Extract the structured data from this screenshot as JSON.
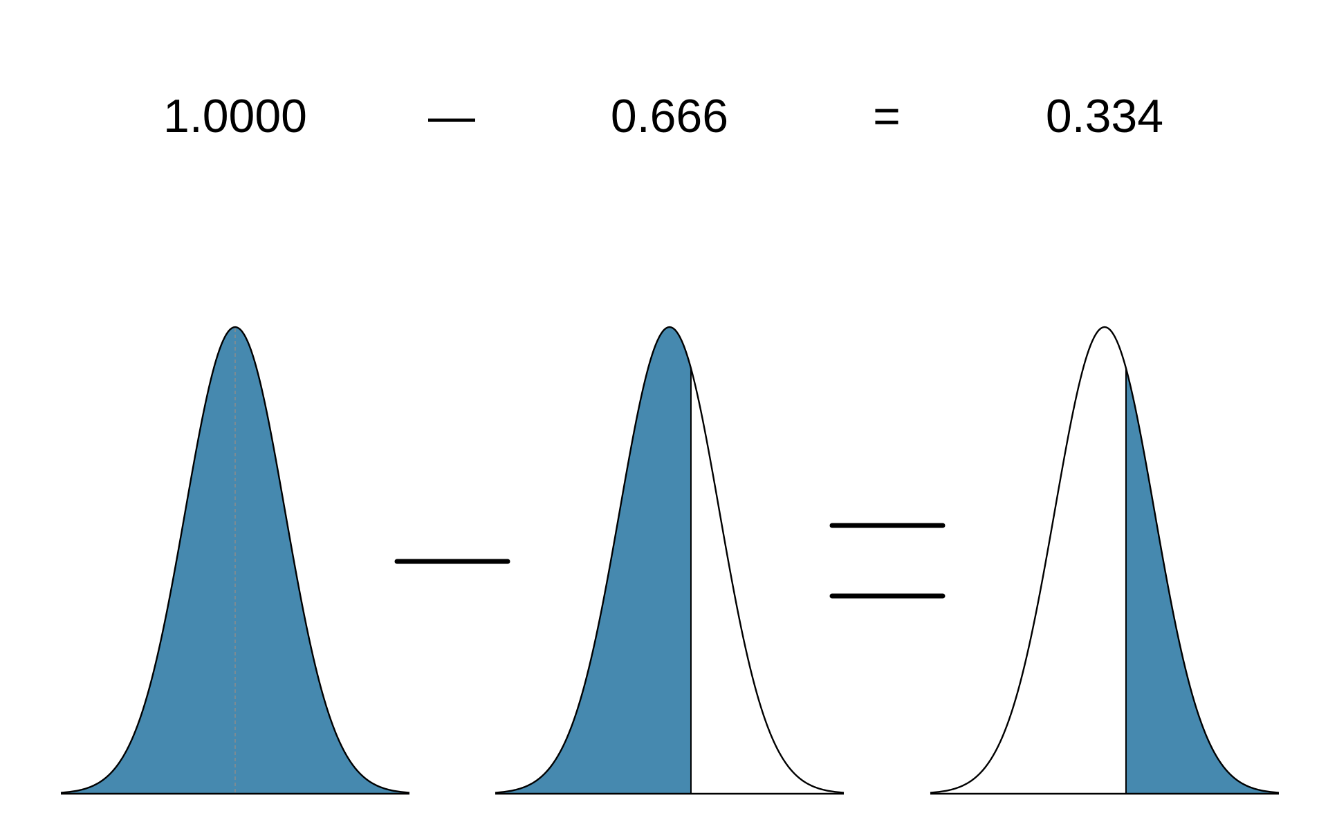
{
  "equation": {
    "term1": "1.0000",
    "minus_symbol": "—",
    "term2": "0.666",
    "equals_symbol": "=",
    "result": "0.334"
  },
  "curves": [
    {
      "name": "total-area",
      "shade": "full",
      "cutoff_z": null,
      "show_center_line": true
    },
    {
      "name": "lower-area",
      "shade": "left",
      "cutoff_z": 0.43,
      "show_center_line": false
    },
    {
      "name": "upper-area",
      "shade": "right",
      "cutoff_z": 0.43,
      "show_center_line": false
    }
  ],
  "colors": {
    "fill": "#4689AF",
    "outline": "#000000",
    "center_line": "#8C8C8C",
    "background": "#FFFFFF"
  }
}
